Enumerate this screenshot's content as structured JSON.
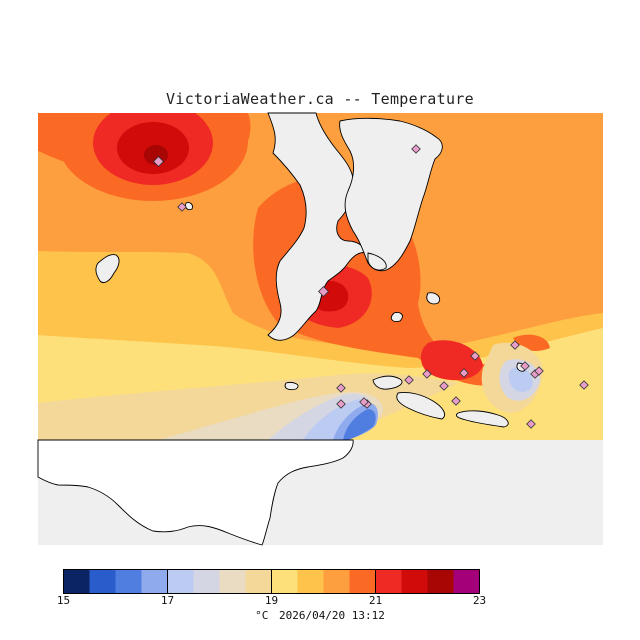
{
  "title": "VictoriaWeather.ca -- Temperature",
  "legend": {
    "unit": "°C",
    "colors": [
      "#0b2464",
      "#2b5ccc",
      "#4f7ee0",
      "#90aaee",
      "#bccbf2",
      "#d4d6e3",
      "#e9dcc2",
      "#f3d89a",
      "#fde07a",
      "#fec34a",
      "#fd9f3f",
      "#fb6a25",
      "#ef2a25",
      "#d10a0a",
      "#a80505",
      "#a3007a"
    ],
    "tick_labels": [
      "15",
      "17",
      "19",
      "21",
      "23"
    ]
  },
  "timestamp": "2026/04/20 13:12",
  "chart_data": {
    "type": "heatmap",
    "title": "VictoriaWeather.ca -- Temperature",
    "variable": "Temperature",
    "unit": "°C",
    "color_range": [
      15,
      23
    ],
    "station_count": 20
  }
}
